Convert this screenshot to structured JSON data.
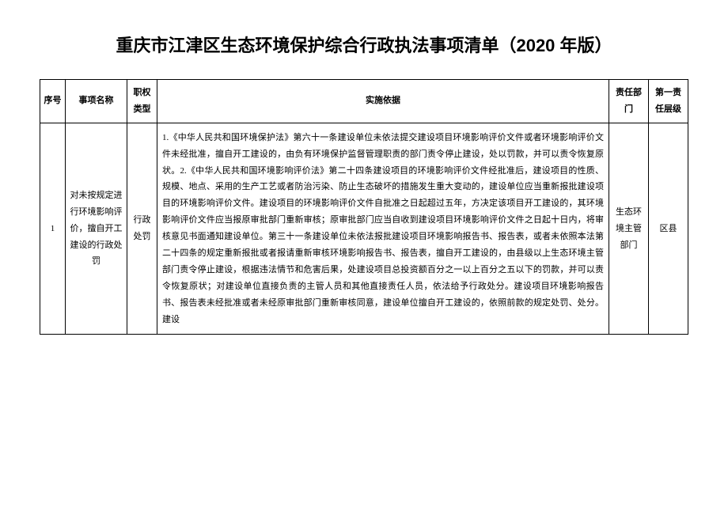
{
  "title": "重庆市江津区生态环境保护综合行政执法事项清单（2020 年版）",
  "columns": [
    "序号",
    "事项名称",
    "职权类型",
    "实施依据",
    "责任部门",
    "第一责任层级"
  ],
  "row": {
    "index": "1",
    "name": "对未按规定进行环境影响评价，擅自开工建设的行政处罚",
    "type": "行政处罚",
    "basis": "1.《中华人民共和国环境保护法》第六十一条建设单位未依法提交建设项目环境影响评价文件或者环境影响评价文件未经批准，擅自开工建设的，由负有环境保护监督管理职责的部门责令停止建设，处以罚款，并可以责令恢复原状。2.《中华人民共和国环境影响评价法》第二十四条建设项目的环境影响评价文件经批准后，建设项目的性质、规模、地点、采用的生产工艺或者防治污染、防止生态破坏的措施发生重大变动的，建设单位应当重新报批建设项目的环境影响评价文件。建设项目的环境影响评价文件自批准之日起超过五年，方决定该项目开工建设的，其环境影响评价文件应当报原审批部门重新审核；原审批部门应当自收到建设项目环境影响评价文件之日起十日内，将审核意见书面通知建设单位。第三十一条建设单位未依法报批建设项目环境影响报告书、报告表，或者未依照本法第二十四条的规定重新报批或者报请重新审核环境影响报告书、报告表，擅自开工建设的，由县级以上生态环境主管部门责令停止建设，根据违法情节和危害后果，处建设项目总投资额百分之一以上百分之五以下的罚款，并可以责令恢复原状；对建设单位直接负责的主管人员和其他直接责任人员，依法给予行政处分。建设项目环境影响报告书、报告表未经批准或者未经原审批部门重新审核同意，建设单位擅自开工建设的，依照前款的规定处罚、处分。建设",
    "dept": "生态环境主管部门",
    "level": "区县"
  },
  "colors": {
    "text": "#000000",
    "background": "#ffffff",
    "border": "#000000"
  },
  "fonts": {
    "title_size": 22,
    "cell_size": 11,
    "line_height": 1.9
  }
}
